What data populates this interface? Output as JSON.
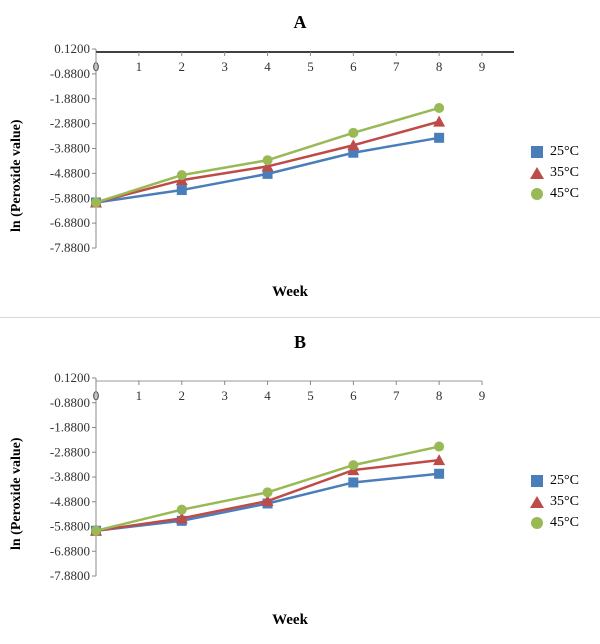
{
  "chart_data": [
    {
      "type": "line",
      "title": "A",
      "xlabel": "Week",
      "ylabel": "ln (Peroxide value)",
      "xlim": [
        0,
        9
      ],
      "ylim": [
        -7.88,
        0.12
      ],
      "xticks": [
        "0",
        "1",
        "2",
        "3",
        "4",
        "5",
        "6",
        "7",
        "8",
        "9"
      ],
      "yticks": [
        "0.1200",
        "-0.8800",
        "-1.8800",
        "-2.8800",
        "-3.8800",
        "-4.8800",
        "-5.8800",
        "-6.8800",
        "-7.8800"
      ],
      "x": [
        0,
        2,
        4,
        6,
        8
      ],
      "legend_position": "right",
      "series": [
        {
          "name": "25°C",
          "values": [
            -6.05,
            -5.55,
            -4.9,
            -4.05,
            -3.45
          ]
        },
        {
          "name": "35°C",
          "values": [
            -6.05,
            -5.15,
            -4.6,
            -3.75,
            -2.8
          ]
        },
        {
          "name": "45°C",
          "values": [
            -6.05,
            -4.95,
            -4.35,
            -3.25,
            -2.25
          ]
        }
      ]
    },
    {
      "type": "line",
      "title": "B",
      "xlabel": "Week",
      "ylabel": "ln (Peroxide value)",
      "xlim": [
        0,
        9
      ],
      "ylim": [
        -7.88,
        0.12
      ],
      "xticks": [
        "0",
        "1",
        "2",
        "3",
        "4",
        "5",
        "6",
        "7",
        "8",
        "9"
      ],
      "yticks": [
        "0.1200",
        "-0.8800",
        "-1.8800",
        "-2.8800",
        "-3.8800",
        "-4.8800",
        "-5.8800",
        "-6.8800",
        "-7.8800"
      ],
      "x": [
        0,
        2,
        4,
        6,
        8
      ],
      "legend_position": "right",
      "series": [
        {
          "name": "25°C",
          "values": [
            -6.05,
            -5.65,
            -4.95,
            -4.1,
            -3.75
          ]
        },
        {
          "name": "35°C",
          "values": [
            -6.05,
            -5.55,
            -4.85,
            -3.6,
            -3.2
          ]
        },
        {
          "name": "45°C",
          "values": [
            -6.05,
            -5.2,
            -4.5,
            -3.4,
            -2.65
          ]
        }
      ]
    }
  ],
  "colors": {
    "25°C": "#4a7ebb",
    "35°C": "#be4b48",
    "45°C": "#98b954"
  },
  "markers": {
    "25°C": "square",
    "35°C": "triangle",
    "45°C": "circle"
  }
}
